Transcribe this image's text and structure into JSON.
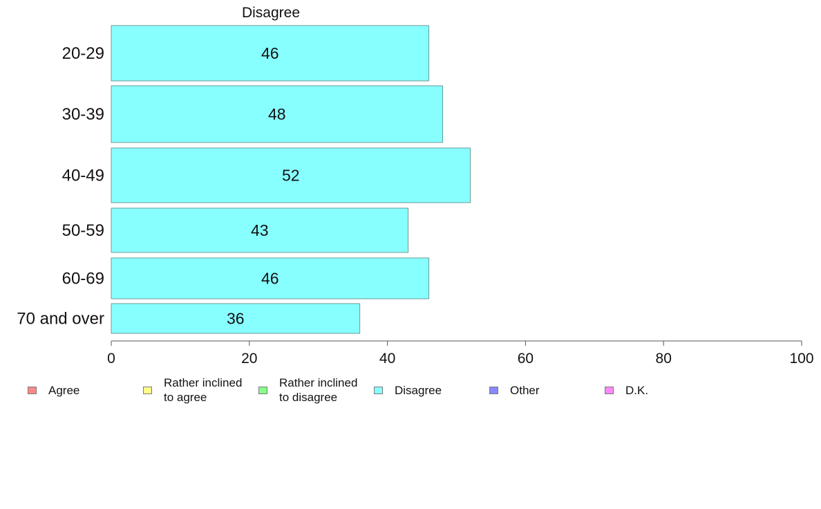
{
  "chart_data": {
    "type": "bar",
    "orientation": "horizontal",
    "title": "Disagree",
    "categories": [
      "20-29",
      "30-39",
      "40-49",
      "50-59",
      "60-69",
      "70 and over"
    ],
    "values": [
      46,
      48,
      52,
      43,
      46,
      36
    ],
    "xlim": [
      0,
      100
    ],
    "xticks": [
      0,
      20,
      40,
      60,
      80,
      100
    ],
    "grid": false,
    "bar_color": "#88ffff",
    "bar_border_color": "#6a9a9a",
    "legend": {
      "placement": "bottom",
      "entries": [
        {
          "label": "Agree",
          "color": "#ff8888"
        },
        {
          "label": "Rather inclined\nto agree",
          "color": "#ffff88"
        },
        {
          "label": "Rather inclined\nto disagree",
          "color": "#88ff88"
        },
        {
          "label": "Disagree",
          "color": "#88ffff"
        },
        {
          "label": "Other",
          "color": "#8888ff"
        },
        {
          "label": "D.K.",
          "color": "#ff88ff"
        }
      ]
    }
  }
}
